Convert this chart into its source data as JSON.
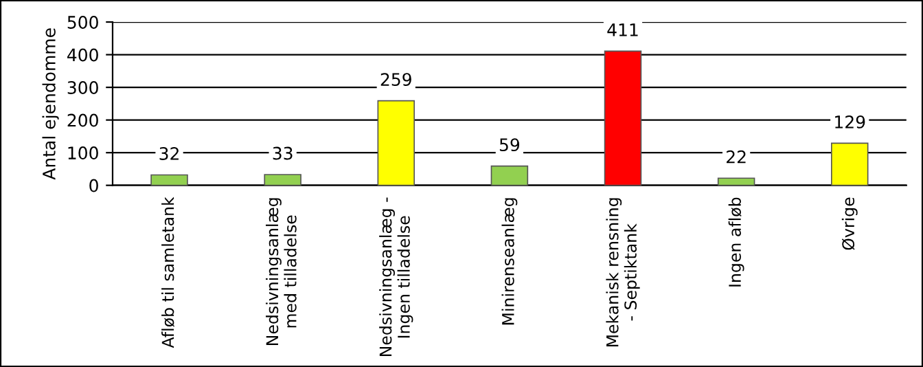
{
  "chart_data": {
    "type": "bar",
    "ylabel": "Antal ejendomme",
    "categories": [
      "Afløb til samletank",
      "Nedsivningsanlæg\nmed tilladelse",
      "Nedsivningsanlæg -\nIngen tilladelse",
      "Minirenseanlæg",
      "Mekanisk rensning\n- Septiktank",
      "Ingen afløb",
      "Øvrige"
    ],
    "values": [
      32,
      33,
      259,
      59,
      411,
      22,
      129
    ],
    "colors": [
      "#92d050",
      "#92d050",
      "#ffff00",
      "#92d050",
      "#ff0000",
      "#92d050",
      "#ffff00"
    ],
    "ylim": [
      0,
      500
    ],
    "yticks": [
      0,
      100,
      200,
      300,
      400,
      500
    ],
    "grid": "y",
    "data_labels": true
  }
}
